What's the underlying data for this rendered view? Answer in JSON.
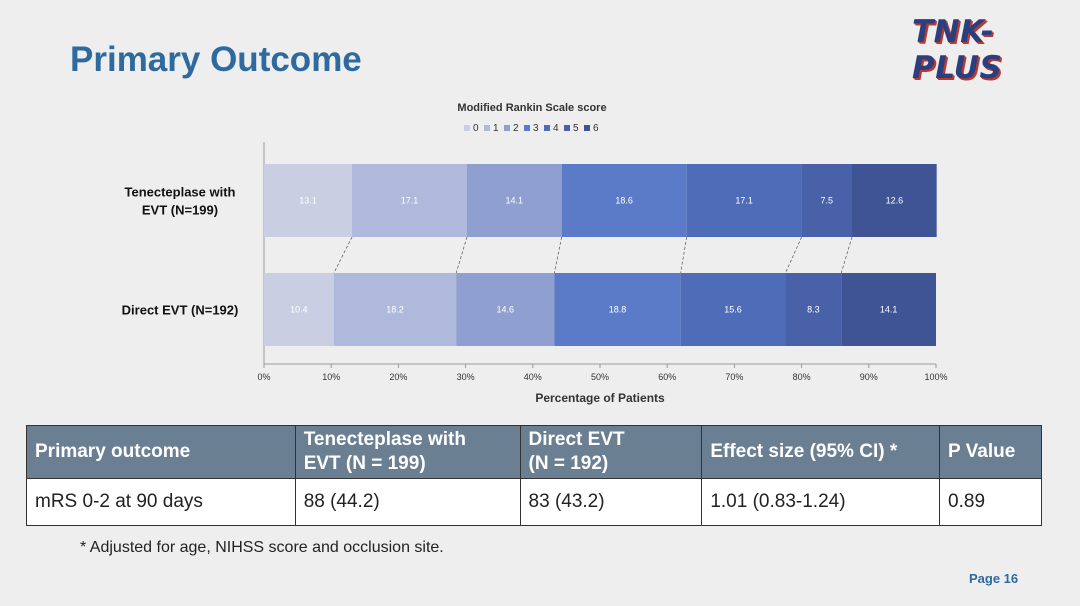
{
  "slide": {
    "title": "Primary Outcome",
    "logo_text": "TNK-PLUS",
    "footnote": "* Adjusted for age, NIHSS score and occlusion site.",
    "page_number": "Page 16"
  },
  "chart_data": {
    "type": "bar",
    "stacked": true,
    "orientation": "horizontal",
    "title": "Modified Rankin Scale score",
    "xlabel": "Percentage of Patients",
    "xlim": [
      0,
      100
    ],
    "xticks": [
      "0%",
      "10%",
      "20%",
      "30%",
      "40%",
      "50%",
      "60%",
      "70%",
      "80%",
      "90%",
      "100%"
    ],
    "legend_position": "top-center",
    "categories": [
      "Tenecteplase with EVT (N=199)",
      "Direct EVT (N=192)"
    ],
    "category_lines": [
      [
        "Tenecteplase with",
        "EVT (N=199)"
      ],
      [
        "Direct EVT (N=192)"
      ]
    ],
    "series": [
      {
        "name": "0",
        "color": "#c9cee3",
        "values": [
          13.1,
          10.4
        ]
      },
      {
        "name": "1",
        "color": "#aeb9dc",
        "values": [
          17.1,
          18.2
        ]
      },
      {
        "name": "2",
        "color": "#8f9fcf",
        "values": [
          14.1,
          14.6
        ]
      },
      {
        "name": "3",
        "color": "#5b7bc8",
        "values": [
          18.6,
          18.8
        ]
      },
      {
        "name": "4",
        "color": "#4f6cb8",
        "values": [
          17.1,
          15.6
        ]
      },
      {
        "name": "5",
        "color": "#4861a9",
        "values": [
          7.5,
          8.3
        ]
      },
      {
        "name": "6",
        "color": "#3e5495",
        "values": [
          12.6,
          14.1
        ]
      }
    ],
    "data_labels": [
      [
        "13.1",
        "17.1",
        "14.1",
        "18.6",
        "17.1",
        "7.5",
        "12.6"
      ],
      [
        "10.4",
        "18.2",
        "14.6",
        "18.8",
        "15.6",
        "8.3",
        "14.1"
      ]
    ]
  },
  "table": {
    "headers": [
      [
        "Primary outcome"
      ],
      [
        "Tenecteplase with",
        "EVT (N = 199)"
      ],
      [
        "Direct EVT",
        "(N = 192)"
      ],
      [
        "Effect size (95% CI) *"
      ],
      [
        "P Value"
      ]
    ],
    "rows": [
      [
        "mRS 0-2 at 90 days",
        "88 (44.2)",
        "83 (43.2)",
        "1.01 (0.83-1.24)",
        "0.89"
      ]
    ]
  }
}
